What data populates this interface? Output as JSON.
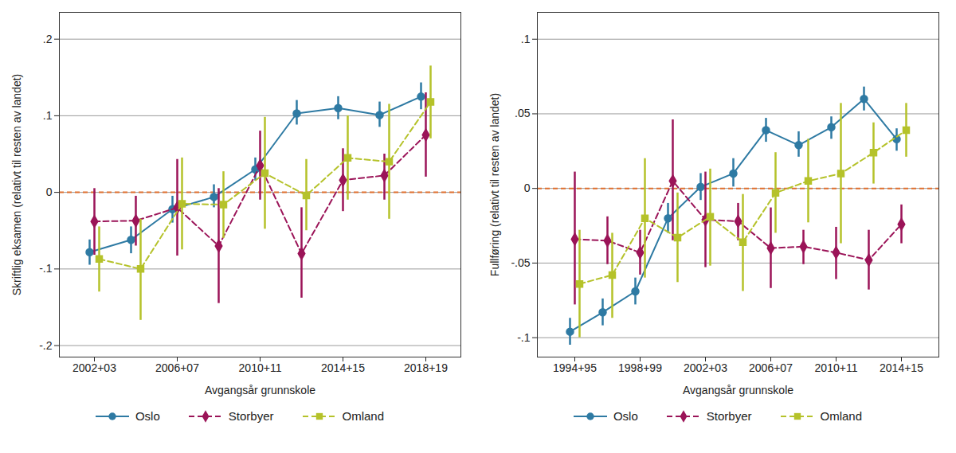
{
  "chart_data": [
    {
      "type": "line",
      "x_label": "Avgangsår grunnskole",
      "y_label": "Skriftlig eksamen (relativt til resten av landet)",
      "categories": [
        "2002+03",
        null,
        "2006+07",
        null,
        "2010+11",
        null,
        "2014+15",
        null,
        "2018+19"
      ],
      "ylim": [
        -0.215,
        0.235
      ],
      "yticks": [
        {
          "value": -0.2,
          "label": "-.2"
        },
        {
          "value": -0.1,
          "label": "-.1"
        },
        0,
        {
          "value": 0.1,
          "label": ".1"
        },
        {
          "value": 0.2,
          "label": ".2"
        }
      ],
      "grid": true,
      "reference_line": 0,
      "legend": "bottom",
      "series": [
        {
          "name": "Oslo",
          "color": "#2e7aa3",
          "marker": "circle",
          "line_style": "solid",
          "values": [
            -0.078,
            -0.062,
            -0.022,
            -0.006,
            0.03,
            0.103,
            0.11,
            0.101,
            0.125
          ],
          "lower": [
            -0.095,
            -0.08,
            -0.04,
            -0.02,
            0.015,
            0.088,
            0.095,
            0.085,
            0.108
          ],
          "upper": [
            -0.062,
            -0.045,
            -0.005,
            0.01,
            0.045,
            0.12,
            0.125,
            0.118,
            0.143
          ]
        },
        {
          "name": "Storbyer",
          "color": "#9b1458",
          "marker": "diamond",
          "line_style": "dashed",
          "values": [
            -0.038,
            -0.037,
            -0.02,
            -0.07,
            0.035,
            -0.08,
            0.016,
            0.022,
            0.075
          ],
          "lower": [
            -0.082,
            -0.07,
            -0.083,
            -0.145,
            -0.01,
            -0.138,
            -0.025,
            -0.01,
            0.02
          ],
          "upper": [
            0.005,
            -0.005,
            0.043,
            0.005,
            0.08,
            -0.02,
            0.057,
            0.05,
            0.13
          ]
        },
        {
          "name": "Omland",
          "color": "#b5c22a",
          "marker": "square",
          "line_style": "dashed",
          "values": [
            -0.087,
            -0.1,
            -0.015,
            -0.016,
            0.025,
            -0.004,
            0.045,
            0.04,
            0.118
          ],
          "lower": [
            -0.13,
            -0.167,
            -0.075,
            -0.06,
            -0.048,
            -0.05,
            -0.01,
            -0.035,
            0.07
          ],
          "upper": [
            -0.045,
            -0.035,
            0.045,
            0.027,
            0.098,
            0.043,
            0.1,
            0.115,
            0.165
          ]
        }
      ]
    },
    {
      "type": "line",
      "x_label": "Avgangsår grunnskole",
      "y_label": "Fullføring (relativt til resten av landet)",
      "categories": [
        "1994+95",
        null,
        "1998+99",
        null,
        "2002+03",
        null,
        "2006+07",
        null,
        "2010+11",
        null,
        "2014+15"
      ],
      "ylim": [
        -0.113,
        0.118
      ],
      "yticks": [
        {
          "value": -0.1,
          "label": "-.1"
        },
        {
          "value": -0.05,
          "label": "-.05"
        },
        0,
        {
          "value": 0.05,
          "label": ".05"
        },
        {
          "value": 0.1,
          "label": ".1"
        }
      ],
      "grid": true,
      "reference_line": 0,
      "legend": "bottom",
      "series": [
        {
          "name": "Oslo",
          "color": "#2e7aa3",
          "marker": "circle",
          "line_style": "solid",
          "values": [
            -0.096,
            -0.083,
            -0.069,
            -0.02,
            0.001,
            0.01,
            0.039,
            0.029,
            0.041,
            0.06,
            0.033
          ],
          "lower": [
            -0.105,
            -0.092,
            -0.078,
            -0.03,
            -0.008,
            0.001,
            0.031,
            0.021,
            0.033,
            0.052,
            0.025
          ],
          "upper": [
            -0.087,
            -0.074,
            -0.06,
            -0.01,
            0.01,
            0.02,
            0.047,
            0.038,
            0.048,
            0.068,
            0.04
          ]
        },
        {
          "name": "Storbyer",
          "color": "#9b1458",
          "marker": "diamond",
          "line_style": "dashed",
          "values": [
            -0.034,
            -0.035,
            -0.043,
            0.005,
            -0.021,
            -0.022,
            -0.04,
            -0.039,
            -0.043,
            -0.048,
            -0.024
          ],
          "lower": [
            -0.078,
            -0.051,
            -0.058,
            -0.035,
            -0.053,
            -0.035,
            -0.067,
            -0.051,
            -0.061,
            -0.068,
            -0.037
          ],
          "upper": [
            0.011,
            -0.019,
            -0.028,
            0.046,
            0.011,
            -0.01,
            -0.013,
            -0.028,
            -0.026,
            -0.028,
            -0.011
          ]
        },
        {
          "name": "Omland",
          "color": "#b5c22a",
          "marker": "square",
          "line_style": "dashed",
          "values": [
            -0.064,
            -0.058,
            -0.02,
            -0.033,
            -0.019,
            -0.036,
            -0.003,
            0.005,
            0.01,
            0.024,
            0.039
          ],
          "lower": [
            -0.1,
            -0.087,
            -0.06,
            -0.063,
            -0.052,
            -0.069,
            -0.03,
            -0.023,
            -0.037,
            0.003,
            0.021
          ],
          "upper": [
            -0.028,
            -0.03,
            0.02,
            -0.003,
            0.013,
            -0.004,
            0.024,
            0.033,
            0.057,
            0.044,
            0.057
          ]
        }
      ]
    }
  ]
}
